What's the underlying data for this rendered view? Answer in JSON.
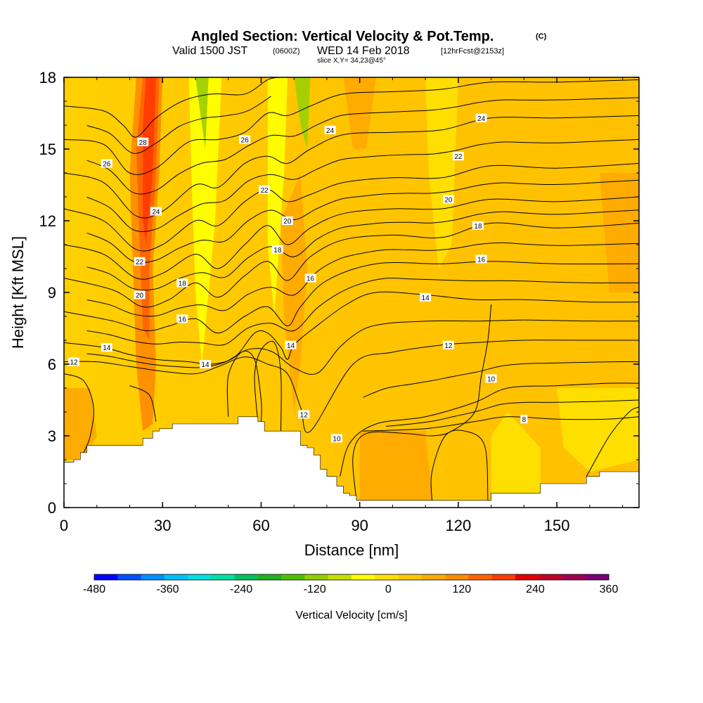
{
  "title": {
    "main": "Angled Section: Vertical Velocity & Pot.Temp.",
    "units_tag": "(C)",
    "valid_prefix": "Valid 1500 JST",
    "valid_utc": "(0600Z)",
    "valid_date": "WED 14 Feb 2018",
    "forecast_tag": "[12hrFcst@2153z]",
    "slice": "slice X,Y= 34,23@45°"
  },
  "chart_data": {
    "type": "heatmap",
    "xlabel": "Distance [nm]",
    "ylabel": "Height [Kft MSL]",
    "xlim": [
      0,
      175
    ],
    "ylim": [
      0,
      18
    ],
    "x_ticks": [
      0,
      30,
      60,
      90,
      120,
      150
    ],
    "x_tick_labels": [
      "0",
      "30",
      "60",
      "90",
      "120",
      "150"
    ],
    "y_ticks": [
      0,
      3,
      6,
      9,
      12,
      15,
      18
    ],
    "y_tick_labels": [
      "0",
      "3",
      "6",
      "9",
      "12",
      "15",
      "18"
    ],
    "colorbar": {
      "label": "Vertical Velocity [cm/s]",
      "min": -480,
      "max": 360,
      "step": 40,
      "tick_values": [
        -480,
        -360,
        -240,
        -120,
        0,
        120,
        240,
        360
      ],
      "tick_labels": [
        "-480",
        "-360",
        "-240",
        "-120",
        "0",
        "120",
        "240",
        "360"
      ],
      "colors": [
        "#0000ff",
        "#0050ff",
        "#0090ff",
        "#00c0ff",
        "#00e0e0",
        "#00e0a0",
        "#00c060",
        "#20b020",
        "#50c000",
        "#90d000",
        "#c8e000",
        "#ffff00",
        "#ffe000",
        "#ffc800",
        "#ffaa00",
        "#ff8c00",
        "#ff6400",
        "#ff3c00",
        "#e60000",
        "#c00028",
        "#a00050",
        "#780078"
      ]
    },
    "terrain_kft": [
      [
        0,
        1.9
      ],
      [
        3,
        2.0
      ],
      [
        5,
        2.3
      ],
      [
        7,
        2.6
      ],
      [
        22,
        2.6
      ],
      [
        24,
        2.9
      ],
      [
        27,
        3.2
      ],
      [
        29,
        3.3
      ],
      [
        33,
        3.5
      ],
      [
        52,
        3.5
      ],
      [
        53,
        3.8
      ],
      [
        58,
        3.8
      ],
      [
        59,
        3.6
      ],
      [
        61,
        3.2
      ],
      [
        71,
        3.2
      ],
      [
        72,
        2.6
      ],
      [
        74,
        2.5
      ],
      [
        76,
        2.2
      ],
      [
        78,
        1.6
      ],
      [
        80,
        1.3
      ],
      [
        83,
        0.9
      ],
      [
        85,
        0.6
      ],
      [
        87,
        0.5
      ],
      [
        89,
        0.3
      ],
      [
        129,
        0.3
      ],
      [
        130,
        0.6
      ],
      [
        144,
        0.6
      ],
      [
        145,
        1.0
      ],
      [
        158,
        1.0
      ],
      [
        159,
        1.3
      ],
      [
        163,
        1.5
      ],
      [
        175,
        1.5
      ]
    ],
    "theta_contours": [
      {
        "value": 8,
        "label": "8",
        "points": [
          [
            91,
            3.2
          ],
          [
            110,
            3.3
          ],
          [
            125,
            3.6
          ],
          [
            135,
            3.8
          ],
          [
            150,
            3.7
          ],
          [
            165,
            3.7
          ],
          [
            175,
            3.8
          ]
        ]
      },
      {
        "value": 10,
        "label": "10",
        "points": [
          [
            84,
            1.3
          ],
          [
            87,
            2.7
          ],
          [
            95,
            3.5
          ],
          [
            110,
            3.8
          ],
          [
            125,
            4.4
          ],
          [
            135,
            5.0
          ],
          [
            150,
            5.1
          ],
          [
            165,
            5.2
          ],
          [
            175,
            5.2
          ]
        ]
      },
      {
        "value": 12,
        "label": "12",
        "points": [
          [
            0,
            6.1
          ],
          [
            10,
            6.1
          ],
          [
            20,
            5.9
          ],
          [
            30,
            5.7
          ],
          [
            40,
            5.6
          ],
          [
            47,
            5.9
          ],
          [
            55,
            6.3
          ],
          [
            62,
            6.0
          ],
          [
            68,
            5.6
          ],
          [
            72,
            4.2
          ],
          [
            75,
            3.2
          ],
          [
            88,
            6.0
          ],
          [
            100,
            6.5
          ],
          [
            115,
            6.8
          ],
          [
            125,
            6.9
          ],
          [
            140,
            7.0
          ],
          [
            160,
            7.0
          ],
          [
            175,
            7.0
          ]
        ]
      },
      {
        "value": 14,
        "label": "14",
        "points": [
          [
            0,
            6.9
          ],
          [
            12,
            6.7
          ],
          [
            20,
            6.4
          ],
          [
            28,
            6.2
          ],
          [
            38,
            6.1
          ],
          [
            45,
            6.0
          ],
          [
            52,
            6.3
          ],
          [
            58,
            7.3
          ],
          [
            62,
            7.3
          ],
          [
            66,
            6.7
          ],
          [
            68,
            6.2
          ],
          [
            70,
            6.8
          ],
          [
            76,
            7.5
          ],
          [
            86,
            8.5
          ],
          [
            95,
            9.0
          ],
          [
            110,
            8.9
          ],
          [
            125,
            8.7
          ],
          [
            140,
            8.7
          ],
          [
            160,
            8.6
          ],
          [
            175,
            8.6
          ]
        ]
      },
      {
        "value": 16,
        "label": "16",
        "points": [
          [
            0,
            8.2
          ],
          [
            15,
            7.8
          ],
          [
            25,
            7.4
          ],
          [
            32,
            7.6
          ],
          [
            40,
            7.9
          ],
          [
            47,
            7.3
          ],
          [
            55,
            8.0
          ],
          [
            62,
            8.4
          ],
          [
            68,
            7.6
          ],
          [
            72,
            8.4
          ],
          [
            80,
            9.5
          ],
          [
            95,
            10.2
          ],
          [
            115,
            10.2
          ],
          [
            130,
            10.3
          ],
          [
            150,
            10.2
          ],
          [
            175,
            10.2
          ]
        ]
      },
      {
        "value": 18,
        "label": "18",
        "points": [
          [
            0,
            9.6
          ],
          [
            15,
            9.1
          ],
          [
            24,
            8.4
          ],
          [
            32,
            8.7
          ],
          [
            40,
            9.4
          ],
          [
            47,
            8.8
          ],
          [
            55,
            9.7
          ],
          [
            62,
            10.3
          ],
          [
            68,
            9.5
          ],
          [
            75,
            10.5
          ],
          [
            85,
            11.2
          ],
          [
            100,
            11.4
          ],
          [
            115,
            11.3
          ],
          [
            130,
            11.9
          ],
          [
            150,
            11.7
          ],
          [
            175,
            11.9
          ]
        ]
      },
      {
        "value": 20,
        "label": "20",
        "points": [
          [
            0,
            11.0
          ],
          [
            12,
            10.6
          ],
          [
            22,
            9.6
          ],
          [
            30,
            9.8
          ],
          [
            40,
            10.6
          ],
          [
            47,
            10.0
          ],
          [
            55,
            11.0
          ],
          [
            62,
            11.8
          ],
          [
            68,
            11.0
          ],
          [
            75,
            11.7
          ],
          [
            85,
            12.3
          ],
          [
            100,
            12.5
          ],
          [
            115,
            12.5
          ],
          [
            130,
            12.9
          ],
          [
            150,
            12.8
          ],
          [
            175,
            13.0
          ]
        ]
      },
      {
        "value": 22,
        "label": "22",
        "points": [
          [
            0,
            12.5
          ],
          [
            12,
            12.0
          ],
          [
            22,
            10.8
          ],
          [
            30,
            11.0
          ],
          [
            40,
            12.0
          ],
          [
            47,
            11.8
          ],
          [
            55,
            12.8
          ],
          [
            62,
            13.3
          ],
          [
            68,
            12.8
          ],
          [
            75,
            13.1
          ],
          [
            85,
            13.6
          ],
          [
            100,
            13.8
          ],
          [
            115,
            13.8
          ],
          [
            130,
            14.3
          ],
          [
            150,
            14.2
          ],
          [
            175,
            14.4
          ]
        ]
      },
      {
        "value": 24,
        "label": "24",
        "points": [
          [
            0,
            14.0
          ],
          [
            12,
            13.6
          ],
          [
            22,
            12.2
          ],
          [
            30,
            12.4
          ],
          [
            40,
            13.5
          ],
          [
            47,
            13.4
          ],
          [
            55,
            14.4
          ],
          [
            62,
            14.7
          ],
          [
            68,
            14.4
          ],
          [
            75,
            15.0
          ],
          [
            85,
            15.6
          ],
          [
            100,
            15.7
          ],
          [
            115,
            15.8
          ],
          [
            130,
            16.3
          ],
          [
            150,
            16.3
          ],
          [
            175,
            16.4
          ]
        ]
      },
      {
        "value": 26,
        "label": "26",
        "points": [
          [
            0,
            15.4
          ],
          [
            12,
            15.2
          ],
          [
            20,
            14.0
          ],
          [
            28,
            14.2
          ],
          [
            38,
            15.3
          ],
          [
            47,
            15.4
          ],
          [
            55,
            15.7
          ],
          [
            62,
            16.5
          ],
          [
            68,
            16.4
          ],
          [
            75,
            16.8
          ],
          [
            85,
            17.3
          ],
          [
            100,
            17.4
          ],
          [
            115,
            17.5
          ],
          [
            130,
            17.8
          ],
          [
            150,
            17.8
          ],
          [
            175,
            17.9
          ]
        ]
      },
      {
        "value": 28,
        "label": "28",
        "points": [
          [
            0,
            16.8
          ],
          [
            12,
            16.6
          ],
          [
            18,
            16.0
          ],
          [
            22,
            15.5
          ],
          [
            28,
            16.3
          ],
          [
            36,
            17.0
          ],
          [
            45,
            17.3
          ],
          [
            55,
            17.3
          ],
          [
            62,
            17.9
          ],
          [
            66,
            18.0
          ]
        ]
      }
    ],
    "contour_labels": [
      {
        "text": "28",
        "x": 24,
        "y": 15.3
      },
      {
        "text": "26",
        "x": 13,
        "y": 14.4
      },
      {
        "text": "24",
        "x": 28,
        "y": 12.4
      },
      {
        "text": "22",
        "x": 23,
        "y": 10.3
      },
      {
        "text": "20",
        "x": 23,
        "y": 8.9
      },
      {
        "text": "18",
        "x": 36,
        "y": 9.4
      },
      {
        "text": "16",
        "x": 36,
        "y": 7.9
      },
      {
        "text": "14",
        "x": 13,
        "y": 6.7
      },
      {
        "text": "12",
        "x": 3,
        "y": 6.1
      },
      {
        "text": "14",
        "x": 43,
        "y": 6.0
      },
      {
        "text": "26",
        "x": 55,
        "y": 15.4
      },
      {
        "text": "22",
        "x": 61,
        "y": 13.3
      },
      {
        "text": "20",
        "x": 68,
        "y": 12.0
      },
      {
        "text": "18",
        "x": 65,
        "y": 10.8
      },
      {
        "text": "16",
        "x": 75,
        "y": 9.6
      },
      {
        "text": "24",
        "x": 81,
        "y": 15.8
      },
      {
        "text": "14",
        "x": 69,
        "y": 6.8
      },
      {
        "text": "12",
        "x": 73,
        "y": 3.9
      },
      {
        "text": "10",
        "x": 83,
        "y": 2.9
      },
      {
        "text": "24",
        "x": 127,
        "y": 16.3
      },
      {
        "text": "22",
        "x": 120,
        "y": 14.7
      },
      {
        "text": "20",
        "x": 117,
        "y": 12.9
      },
      {
        "text": "18",
        "x": 126,
        "y": 11.8
      },
      {
        "text": "16",
        "x": 127,
        "y": 10.4
      },
      {
        "text": "14",
        "x": 110,
        "y": 8.8
      },
      {
        "text": "12",
        "x": 117,
        "y": 6.8
      },
      {
        "text": "10",
        "x": 130,
        "y": 5.4
      },
      {
        "text": "8",
        "x": 140,
        "y": 3.7
      }
    ]
  }
}
